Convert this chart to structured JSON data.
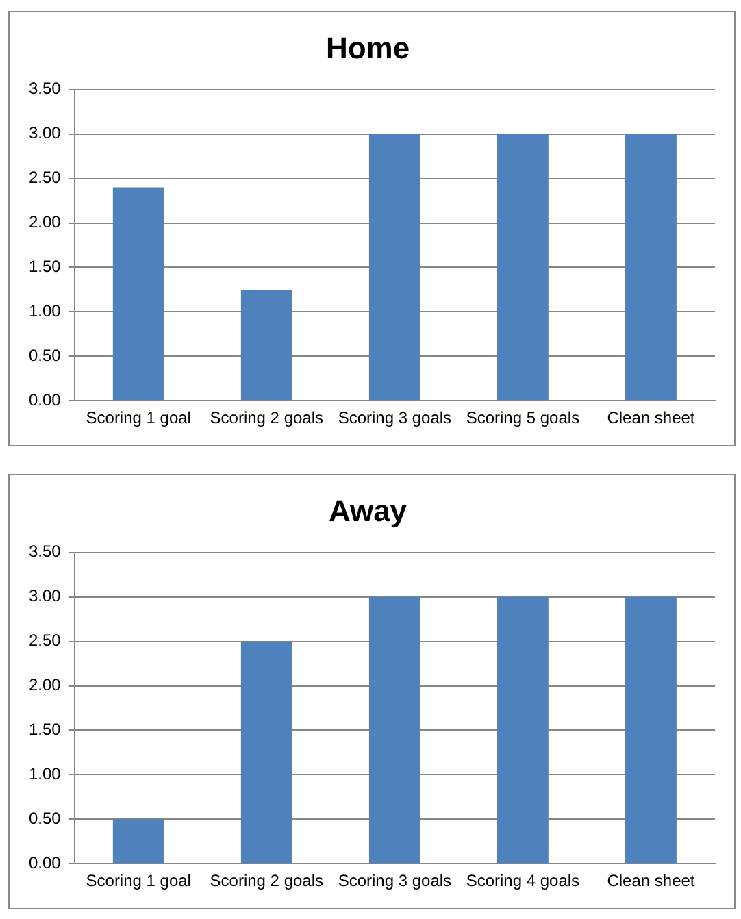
{
  "chart_data": [
    {
      "type": "bar",
      "title": "Home",
      "categories": [
        "Scoring 1 goal",
        "Scoring 2 goals",
        "Scoring 3 goals",
        "Scoring 5 goals",
        "Clean sheet"
      ],
      "values": [
        2.4,
        1.25,
        3,
        3,
        3
      ],
      "color": "#4f81bd",
      "ylim": [
        0,
        3.5
      ],
      "yticks": [
        {
          "value": 0,
          "label": "0.00"
        },
        {
          "value": 0.5,
          "label": "0.50"
        },
        {
          "value": 1,
          "label": "1.00"
        },
        {
          "value": 1.5,
          "label": "1.50"
        },
        {
          "value": 2,
          "label": "2.00"
        },
        {
          "value": 2.5,
          "label": "2.50"
        },
        {
          "value": 3,
          "label": "3.00"
        },
        {
          "value": 3.5,
          "label": "3.50"
        }
      ],
      "grid": "y"
    },
    {
      "type": "bar",
      "title": "Away",
      "categories": [
        "Scoring 1 goal",
        "Scoring 2 goals",
        "Scoring 3 goals",
        "Scoring 4 goals",
        "Clean sheet"
      ],
      "values": [
        0.5,
        2.5,
        3,
        3,
        3
      ],
      "color": "#4f81bd",
      "ylim": [
        0,
        3.5
      ],
      "yticks": [
        {
          "value": 0,
          "label": "0.00"
        },
        {
          "value": 0.5,
          "label": "0.50"
        },
        {
          "value": 1,
          "label": "1.00"
        },
        {
          "value": 1.5,
          "label": "1.50"
        },
        {
          "value": 2,
          "label": "2.00"
        },
        {
          "value": 2.5,
          "label": "2.50"
        },
        {
          "value": 3,
          "label": "3.00"
        },
        {
          "value": 3.5,
          "label": "3.50"
        }
      ],
      "grid": "y"
    }
  ]
}
